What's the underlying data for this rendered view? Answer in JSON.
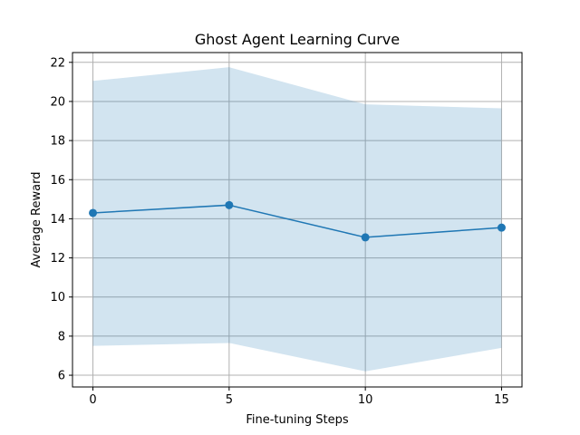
{
  "chart_data": {
    "type": "line",
    "title": "Ghost Agent Learning Curve",
    "xlabel": "Fine-tuning Steps",
    "ylabel": "Average Reward",
    "x": [
      0,
      5,
      10,
      15
    ],
    "series": [
      {
        "values": [
          14.3,
          14.7,
          13.05,
          13.55
        ],
        "lower": [
          7.5,
          7.65,
          6.2,
          7.4
        ],
        "upper": [
          21.05,
          21.75,
          19.85,
          19.65
        ]
      }
    ],
    "xlim": [
      -0.75,
      15.75
    ],
    "ylim": [
      5.4,
      22.5
    ],
    "xticks": [
      "0",
      "5",
      "10",
      "15"
    ],
    "yticks": [
      "6",
      "8",
      "10",
      "12",
      "14",
      "16",
      "18",
      "20",
      "22"
    ],
    "grid": true,
    "colors": {
      "line": "#1f77b4",
      "band": "#1f77b4",
      "grid": "#b0b0b0",
      "axes": "#000000"
    }
  }
}
